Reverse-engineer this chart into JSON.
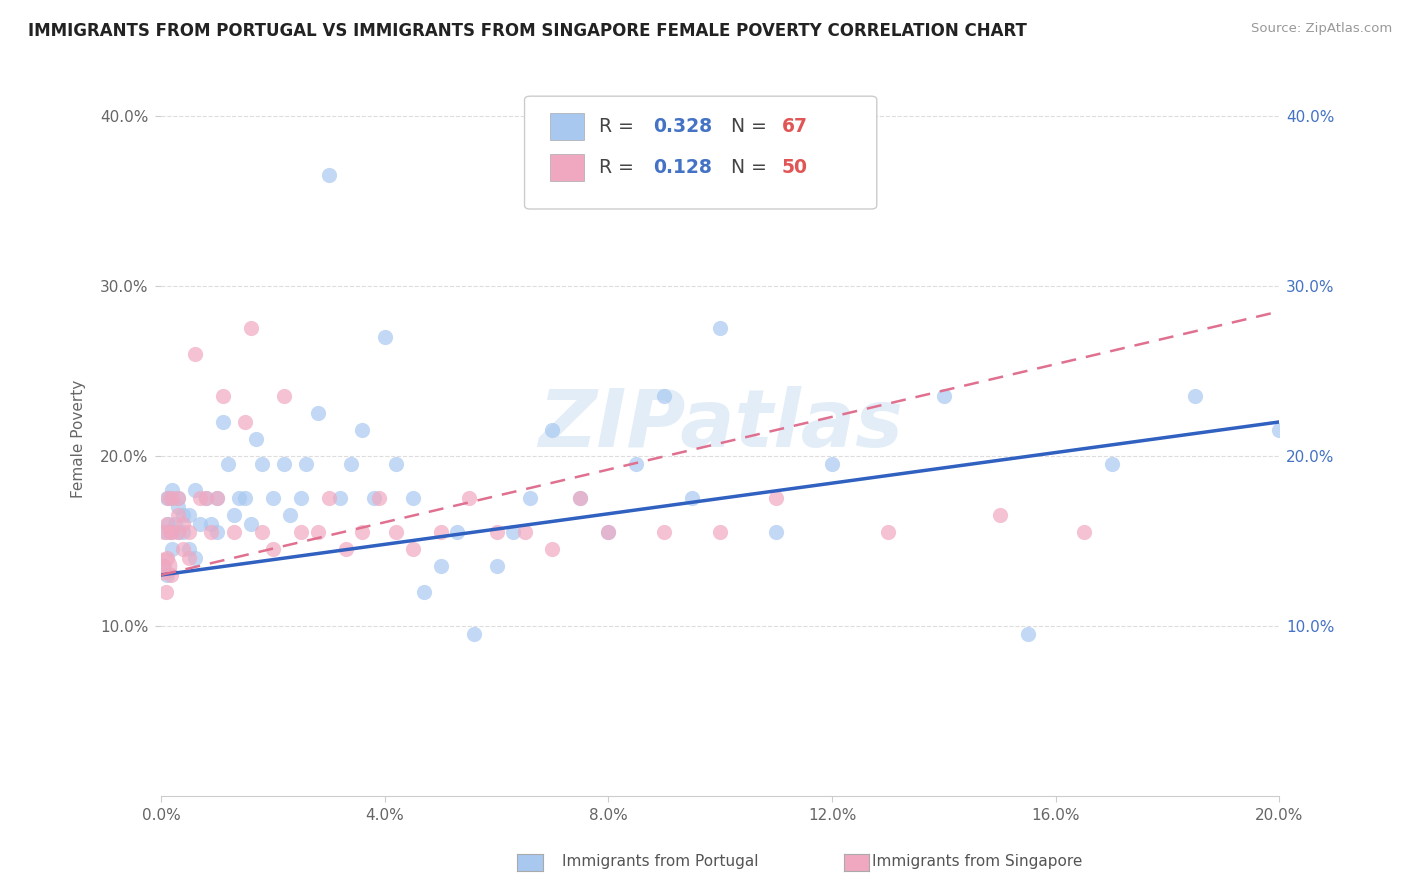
{
  "title": "IMMIGRANTS FROM PORTUGAL VS IMMIGRANTS FROM SINGAPORE FEMALE POVERTY CORRELATION CHART",
  "source": "Source: ZipAtlas.com",
  "ylabel": "Female Poverty",
  "xlim": [
    0.0,
    0.2
  ],
  "ylim": [
    0.0,
    0.42
  ],
  "xticks": [
    0.0,
    0.04,
    0.08,
    0.12,
    0.16,
    0.2
  ],
  "yticks": [
    0.1,
    0.2,
    0.3,
    0.4
  ],
  "ytick_labels": [
    "10.0%",
    "20.0%",
    "30.0%",
    "40.0%"
  ],
  "xtick_labels": [
    "0.0%",
    "4.0%",
    "8.0%",
    "12.0%",
    "16.0%",
    "20.0%"
  ],
  "legend_r1": "0.328",
  "legend_n1": "67",
  "legend_r2": "0.128",
  "legend_n2": "50",
  "color_portugal": "#a8c8f0",
  "color_singapore": "#f0a8c0",
  "color_portugal_line": "#3060c0",
  "color_singapore_line": "#e07090",
  "watermark": "ZIPatlas",
  "portugal_x": [
    0.0005,
    0.0008,
    0.001,
    0.001,
    0.0012,
    0.0015,
    0.0018,
    0.002,
    0.002,
    0.0025,
    0.003,
    0.003,
    0.003,
    0.004,
    0.004,
    0.005,
    0.005,
    0.006,
    0.006,
    0.007,
    0.008,
    0.009,
    0.01,
    0.01,
    0.011,
    0.012,
    0.013,
    0.014,
    0.015,
    0.016,
    0.017,
    0.018,
    0.02,
    0.022,
    0.023,
    0.025,
    0.026,
    0.028,
    0.03,
    0.032,
    0.034,
    0.036,
    0.038,
    0.04,
    0.042,
    0.045,
    0.047,
    0.05,
    0.053,
    0.056,
    0.06,
    0.063,
    0.066,
    0.07,
    0.075,
    0.08,
    0.085,
    0.09,
    0.095,
    0.1,
    0.11,
    0.12,
    0.14,
    0.155,
    0.17,
    0.185,
    0.2
  ],
  "portugal_y": [
    0.135,
    0.155,
    0.13,
    0.175,
    0.16,
    0.175,
    0.155,
    0.18,
    0.145,
    0.16,
    0.175,
    0.155,
    0.17,
    0.165,
    0.155,
    0.145,
    0.165,
    0.14,
    0.18,
    0.16,
    0.175,
    0.16,
    0.155,
    0.175,
    0.22,
    0.195,
    0.165,
    0.175,
    0.175,
    0.16,
    0.21,
    0.195,
    0.175,
    0.195,
    0.165,
    0.175,
    0.195,
    0.225,
    0.365,
    0.175,
    0.195,
    0.215,
    0.175,
    0.27,
    0.195,
    0.175,
    0.12,
    0.135,
    0.155,
    0.095,
    0.135,
    0.155,
    0.175,
    0.215,
    0.175,
    0.155,
    0.195,
    0.235,
    0.175,
    0.275,
    0.155,
    0.195,
    0.235,
    0.095,
    0.195,
    0.235,
    0.215
  ],
  "singapore_x": [
    0.0003,
    0.0005,
    0.0008,
    0.001,
    0.001,
    0.0012,
    0.0015,
    0.0018,
    0.002,
    0.002,
    0.003,
    0.003,
    0.003,
    0.004,
    0.004,
    0.005,
    0.005,
    0.006,
    0.007,
    0.008,
    0.009,
    0.01,
    0.011,
    0.013,
    0.015,
    0.016,
    0.018,
    0.02,
    0.022,
    0.025,
    0.028,
    0.03,
    0.033,
    0.036,
    0.039,
    0.042,
    0.045,
    0.05,
    0.055,
    0.06,
    0.065,
    0.07,
    0.075,
    0.08,
    0.09,
    0.1,
    0.11,
    0.13,
    0.15,
    0.165
  ],
  "singapore_y": [
    0.135,
    0.155,
    0.12,
    0.14,
    0.16,
    0.175,
    0.155,
    0.13,
    0.175,
    0.155,
    0.165,
    0.155,
    0.175,
    0.145,
    0.16,
    0.14,
    0.155,
    0.26,
    0.175,
    0.175,
    0.155,
    0.175,
    0.235,
    0.155,
    0.22,
    0.275,
    0.155,
    0.145,
    0.235,
    0.155,
    0.155,
    0.175,
    0.145,
    0.155,
    0.175,
    0.155,
    0.145,
    0.155,
    0.175,
    0.155,
    0.155,
    0.145,
    0.175,
    0.155,
    0.155,
    0.155,
    0.175,
    0.155,
    0.165,
    0.155
  ]
}
